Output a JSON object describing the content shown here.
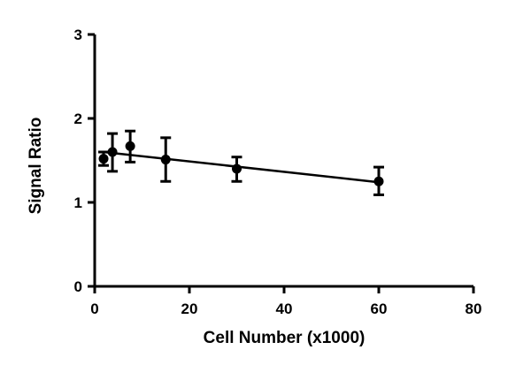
{
  "chart_data": {
    "type": "scatter",
    "title": "",
    "xlabel": "Cell Number (x1000)",
    "ylabel": "Signal Ratio",
    "xlim": [
      0,
      80
    ],
    "ylim": [
      0,
      3
    ],
    "xticks": [
      0,
      20,
      40,
      60,
      80
    ],
    "yticks": [
      0,
      1,
      2,
      3
    ],
    "grid": false,
    "legend": "none",
    "series": [
      {
        "points": [
          {
            "x": 1.875,
            "y": 1.52,
            "err_low": 0.08,
            "err_high": 0.08
          },
          {
            "x": 3.75,
            "y": 1.6,
            "err_low": 0.23,
            "err_high": 0.22
          },
          {
            "x": 7.5,
            "y": 1.67,
            "err_low": 0.19,
            "err_high": 0.18
          },
          {
            "x": 15,
            "y": 1.51,
            "err_low": 0.26,
            "err_high": 0.26
          },
          {
            "x": 30,
            "y": 1.4,
            "err_low": 0.15,
            "err_high": 0.14
          },
          {
            "x": 60,
            "y": 1.25,
            "err_low": 0.16,
            "err_high": 0.17
          }
        ]
      }
    ],
    "fit_line": {
      "x": [
        1.875,
        60
      ],
      "y": [
        1.6,
        1.24
      ]
    },
    "colors": {
      "marker": "#000000",
      "line": "#000000",
      "axis": "#000000"
    }
  }
}
